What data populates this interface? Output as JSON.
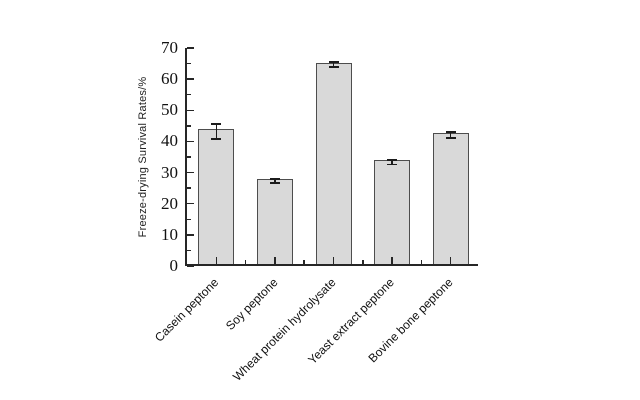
{
  "chart_data": {
    "type": "bar",
    "title": "",
    "categories": [
      "Casein peptone",
      "Soy peptone",
      "Wheat protein hydrolysate",
      "Yeast extract peptone",
      "Bovine bone peptone"
    ],
    "values": [
      43.2,
      27.3,
      64.7,
      33.3,
      42.0
    ],
    "errors": [
      2.6,
      0.9,
      1.0,
      0.9,
      1.2
    ],
    "xlabel": "",
    "ylabel": "Freeze-drying Survival Rates/%",
    "ylim": [
      0,
      70
    ],
    "ytick_step": 10,
    "yminor_step": 5,
    "ytick_labels": [
      "0",
      "10",
      "20",
      "30",
      "40",
      "50",
      "60",
      "70"
    ],
    "grid": false,
    "legend": null,
    "colors": {
      "bar_fill": "#d9d9d9",
      "bar_border": "#4d4d4d",
      "axis": "#262626",
      "error_bar": "#1c1c1c",
      "text": "#111111",
      "background": "#ffffff"
    }
  }
}
